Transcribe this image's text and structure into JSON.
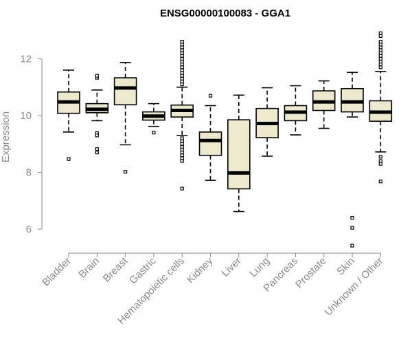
{
  "chart_data": {
    "type": "boxplot",
    "title": "ENSG00000100083 - GGA1",
    "xlabel": "",
    "ylabel": "Expression",
    "ylim": [
      5.3,
      13.1
    ],
    "yticks": [
      6,
      8,
      10,
      12
    ],
    "box_fill": "#eee8cd",
    "categories": [
      "Bladder",
      "Brain",
      "Breast",
      "Gastric",
      "Hematopoietic cells",
      "Kidney",
      "Liver",
      "Lung",
      "Pancreas",
      "Prostate",
      "Skin",
      "Unknown / Other"
    ],
    "boxes": [
      {
        "min": 9.42,
        "q1": 10.08,
        "median": 10.48,
        "q3": 10.83,
        "max": 11.6,
        "outliers": [
          8.47
        ]
      },
      {
        "min": 9.82,
        "q1": 10.1,
        "median": 10.22,
        "q3": 10.42,
        "max": 10.9,
        "outliers": [
          11.33,
          11.4,
          9.38,
          9.3,
          8.82,
          8.7
        ]
      },
      {
        "min": 8.97,
        "q1": 10.38,
        "median": 10.97,
        "q3": 11.33,
        "max": 11.87,
        "outliers": [
          8.02
        ]
      },
      {
        "min": 9.62,
        "q1": 9.84,
        "median": 9.98,
        "q3": 10.13,
        "max": 10.42,
        "outliers": [
          9.4
        ]
      },
      {
        "min": 9.3,
        "q1": 9.95,
        "median": 10.18,
        "q3": 10.37,
        "max": 11.0,
        "outliers": [
          12.6,
          12.5,
          12.4,
          12.3,
          12.2,
          12.1,
          12.0,
          11.9,
          11.8,
          11.7,
          11.6,
          11.5,
          11.4,
          11.3,
          11.2,
          11.1,
          9.2,
          9.1,
          9.0,
          8.9,
          8.8,
          8.7,
          8.6,
          8.5,
          8.4,
          7.43
        ]
      },
      {
        "min": 7.72,
        "q1": 8.6,
        "median": 9.12,
        "q3": 9.42,
        "max": 10.35,
        "outliers": [
          10.7
        ]
      },
      {
        "min": 6.62,
        "q1": 7.42,
        "median": 7.98,
        "q3": 9.85,
        "max": 10.72,
        "outliers": []
      },
      {
        "min": 8.57,
        "q1": 9.22,
        "median": 9.72,
        "q3": 10.25,
        "max": 10.98,
        "outliers": []
      },
      {
        "min": 9.32,
        "q1": 9.82,
        "median": 10.12,
        "q3": 10.35,
        "max": 11.05,
        "outliers": []
      },
      {
        "min": 9.55,
        "q1": 10.18,
        "median": 10.48,
        "q3": 10.87,
        "max": 11.22,
        "outliers": []
      },
      {
        "min": 9.95,
        "q1": 10.13,
        "median": 10.48,
        "q3": 10.95,
        "max": 11.52,
        "outliers": [
          6.4,
          6.05,
          5.42
        ]
      },
      {
        "min": 8.72,
        "q1": 9.8,
        "median": 10.12,
        "q3": 10.52,
        "max": 11.55,
        "outliers": [
          12.9,
          12.8,
          12.6,
          12.5,
          12.4,
          12.3,
          12.2,
          12.1,
          12.0,
          11.9,
          11.8,
          11.7,
          8.55,
          8.4,
          8.3,
          7.68
        ]
      }
    ]
  }
}
